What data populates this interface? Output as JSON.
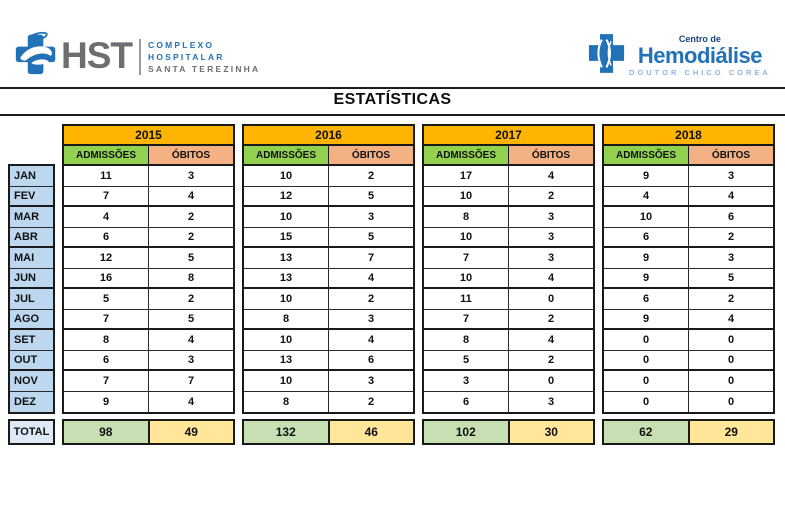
{
  "header": {
    "title": "ESTATÍSTICAS",
    "hst_logo": {
      "abbr": "HST",
      "line1": "COMPLEXO",
      "line2": "HOSPITALAR",
      "line3": "SANTA TEREZINHA"
    },
    "hemo_logo": {
      "top": "Centro de",
      "name": "Hemodiálise",
      "sub": "DOUTOR CHICO COREA"
    }
  },
  "months": [
    "JAN",
    "FEV",
    "MAR",
    "ABR",
    "MAI",
    "JUN",
    "JUL",
    "AGO",
    "SET",
    "OUT",
    "NOV",
    "DEZ"
  ],
  "col_headers": {
    "admissions": "ADMISSÕES",
    "deaths": "ÓBITOS"
  },
  "total_label": "TOTAL",
  "years": [
    {
      "year": "2015",
      "admissions": [
        11,
        7,
        4,
        6,
        12,
        16,
        5,
        7,
        8,
        6,
        7,
        9
      ],
      "deaths": [
        3,
        4,
        2,
        2,
        5,
        8,
        2,
        5,
        4,
        3,
        7,
        4
      ],
      "total_admissions": 98,
      "total_deaths": 49
    },
    {
      "year": "2016",
      "admissions": [
        10,
        12,
        10,
        15,
        13,
        13,
        10,
        8,
        10,
        13,
        10,
        8
      ],
      "deaths": [
        2,
        5,
        3,
        5,
        7,
        4,
        2,
        3,
        4,
        6,
        3,
        2
      ],
      "total_admissions": 132,
      "total_deaths": 46
    },
    {
      "year": "2017",
      "admissions": [
        17,
        10,
        8,
        10,
        7,
        10,
        11,
        7,
        8,
        5,
        3,
        6
      ],
      "deaths": [
        4,
        2,
        3,
        3,
        3,
        4,
        0,
        2,
        4,
        2,
        0,
        3
      ],
      "total_admissions": 102,
      "total_deaths": 30
    },
    {
      "year": "2018",
      "admissions": [
        9,
        4,
        10,
        6,
        9,
        9,
        6,
        9,
        0,
        0,
        0,
        0
      ],
      "deaths": [
        3,
        4,
        6,
        2,
        3,
        5,
        2,
        4,
        0,
        0,
        0,
        0
      ],
      "total_admissions": 62,
      "total_deaths": 29
    }
  ],
  "colors": {
    "year_header": "#FFB400",
    "admissions_header": "#92D050",
    "deaths_header": "#F4B183",
    "month_cell": "#BDD7EE",
    "total_label_cell": "#DCE9F7",
    "total_admissions_cell": "#C6E0B4",
    "total_deaths_cell": "#FFE699",
    "logo_blue": "#2272B8",
    "logo_gray": "#6D6E71"
  }
}
